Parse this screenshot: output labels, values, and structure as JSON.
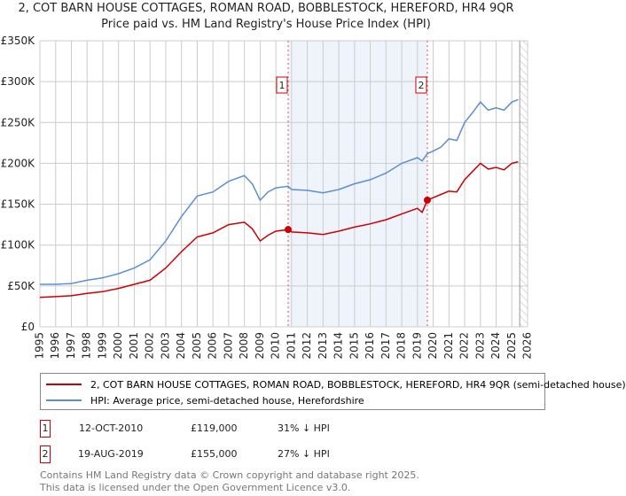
{
  "title_line1": "2, COT BARN HOUSE COTTAGES, ROMAN ROAD, BOBBLESTOCK, HEREFORD, HR4 9QR",
  "title_line2": "Price paid vs. HM Land Registry's House Price Index (HPI)",
  "chart_data": {
    "type": "line",
    "xlim": [
      1995,
      2026
    ],
    "ylim": [
      0,
      350000
    ],
    "x_ticks": [
      "1995",
      "1996",
      "1997",
      "1998",
      "1999",
      "2000",
      "2001",
      "2002",
      "2003",
      "2004",
      "2005",
      "2006",
      "2007",
      "2008",
      "2009",
      "2010",
      "2011",
      "2012",
      "2013",
      "2014",
      "2015",
      "2016",
      "2017",
      "2018",
      "2019",
      "2020",
      "2021",
      "2022",
      "2023",
      "2024",
      "2025",
      "2026"
    ],
    "y_ticks": [
      {
        "v": 0,
        "label": "£0"
      },
      {
        "v": 50000,
        "label": "£50K"
      },
      {
        "v": 100000,
        "label": "£100K"
      },
      {
        "v": 150000,
        "label": "£150K"
      },
      {
        "v": 200000,
        "label": "£200K"
      },
      {
        "v": 250000,
        "label": "£250K"
      },
      {
        "v": 300000,
        "label": "£300K"
      },
      {
        "v": 350000,
        "label": "£350K"
      }
    ],
    "grid": true,
    "series": [
      {
        "name": "2, COT BARN HOUSE COTTAGES, ROMAN ROAD, BOBBLESTOCK, HEREFORD, HR4 9QR (semi-detached house)",
        "color": "#cc0000",
        "x": [
          1995,
          1996,
          1997,
          1998,
          1999,
          2000,
          2001,
          2002,
          2003,
          2004,
          2005,
          2006,
          2007,
          2008,
          2008.5,
          2009,
          2009.5,
          2010,
          2010.78,
          2011,
          2012,
          2013,
          2014,
          2015,
          2016,
          2017,
          2018,
          2019,
          2019.3,
          2019.63,
          2020,
          2020.5,
          2021,
          2021.5,
          2022,
          2022.5,
          2023,
          2023.5,
          2024,
          2024.5,
          2025,
          2025.4
        ],
        "y": [
          36000,
          37000,
          38000,
          41000,
          43000,
          47000,
          52000,
          57000,
          72000,
          92000,
          110000,
          115000,
          125000,
          128000,
          120000,
          105000,
          112000,
          117000,
          119000,
          116000,
          115000,
          113000,
          117000,
          122000,
          126000,
          131000,
          138000,
          145000,
          140000,
          155000,
          158000,
          162000,
          166000,
          165000,
          180000,
          190000,
          200000,
          193000,
          195000,
          192000,
          200000,
          202000
        ]
      },
      {
        "name": "HPI: Average price, semi-detached house, Herefordshire",
        "color": "#5b8fd0",
        "x": [
          1995,
          1996,
          1997,
          1998,
          1999,
          2000,
          2001,
          2002,
          2003,
          2004,
          2005,
          2006,
          2007,
          2008,
          2008.5,
          2009,
          2009.5,
          2010,
          2010.78,
          2011,
          2012,
          2013,
          2014,
          2015,
          2016,
          2017,
          2018,
          2019,
          2019.3,
          2019.63,
          2020,
          2020.5,
          2021,
          2021.5,
          2022,
          2022.5,
          2023,
          2023.5,
          2024,
          2024.5,
          2025,
          2025.4
        ],
        "y": [
          52000,
          52000,
          53000,
          57000,
          60000,
          65000,
          72000,
          82000,
          105000,
          135000,
          160000,
          165000,
          178000,
          185000,
          175000,
          155000,
          165000,
          170000,
          172000,
          168000,
          167000,
          164000,
          168000,
          175000,
          180000,
          188000,
          200000,
          207000,
          203000,
          212000,
          215000,
          220000,
          230000,
          228000,
          250000,
          262000,
          275000,
          265000,
          268000,
          265000,
          275000,
          278000
        ]
      }
    ],
    "sales": [
      {
        "label": "1",
        "x": 2010.78,
        "y": 119000,
        "date": "12-OCT-2010",
        "price": "£119,000",
        "hpi": "31% ↓ HPI"
      },
      {
        "label": "2",
        "x": 2019.63,
        "y": 155000,
        "date": "19-AUG-2019",
        "price": "£155,000",
        "hpi": "27% ↓ HPI"
      }
    ],
    "shaded_range": [
      2010.78,
      2019.63
    ],
    "forecast_hatch_from": 2025.5
  },
  "legend": {
    "red": "2, COT BARN HOUSE COTTAGES, ROMAN ROAD, BOBBLESTOCK, HEREFORD, HR4 9QR (semi-detached house)",
    "blue": "HPI: Average price, semi-detached house, Herefordshire"
  },
  "footer_line1": "Contains HM Land Registry data © Crown copyright and database right 2025.",
  "footer_line2": "This data is licensed under the Open Government Licence v3.0."
}
